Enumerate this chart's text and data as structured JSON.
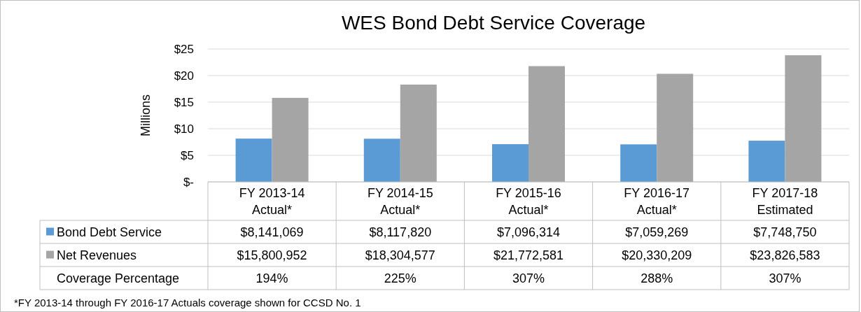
{
  "chart_data": {
    "type": "bar",
    "title": "WES Bond Debt Service Coverage",
    "ylabel": "Millions",
    "categories": [
      "FY 2013-14\nActual*",
      "FY 2014-15\nActual*",
      "FY 2015-16\nActual*",
      "FY 2016-17\nActual*",
      "FY 2017-18\nEstimated"
    ],
    "series": [
      {
        "name": "Bond Debt Service",
        "color": "#5b9bd5",
        "values": [
          8.141069,
          8.11782,
          7.096314,
          7.059269,
          7.74875
        ]
      },
      {
        "name": "Net Revenues",
        "color": "#a5a5a5",
        "values": [
          15.800952,
          18.304577,
          21.772581,
          20.330209,
          23.826583
        ]
      }
    ],
    "ylim": [
      0,
      25
    ],
    "yticks": [
      {
        "value": 0,
        "label": "$-"
      },
      {
        "value": 5,
        "label": "$5"
      },
      {
        "value": 10,
        "label": "$10"
      },
      {
        "value": 15,
        "label": "$15"
      },
      {
        "value": 20,
        "label": "$20"
      },
      {
        "value": 25,
        "label": "$25"
      }
    ],
    "grid": "y",
    "legend": "bottom",
    "annotations": [
      "$8,141,069",
      "$8,117,820",
      "$7,096,314",
      "$7,059,269",
      "$7,748,750",
      "$15,800,952",
      "$18,304,577",
      "$21,772,581",
      "$20,330,209",
      "$23,826,583",
      "Coverage Percentage",
      "194%",
      "225%",
      "307%",
      "288%",
      "307%",
      "*FY 2013-14 through FY 2016-17 Actuals coverage shown for CCSD No. 1"
    ]
  }
}
